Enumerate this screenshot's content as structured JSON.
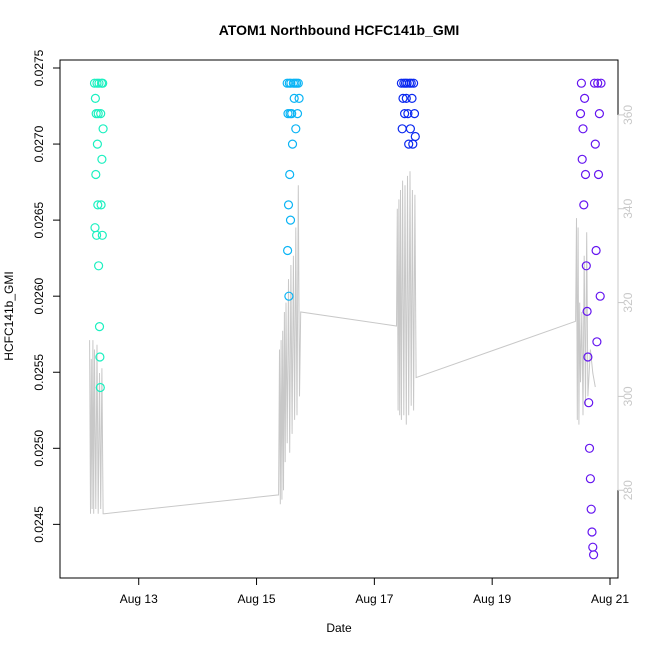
{
  "chart_data": {
    "type": "scatter",
    "title": "ATOM1 Northbound HCFC141b_GMI",
    "xlabel": "Date",
    "ylabel": "HCFC141b_GMI",
    "xlim": [
      "2016-08-11T20:00",
      "2016-08-21T00:00"
    ],
    "ylim": [
      0.0242,
      0.0275
    ],
    "y2lim": [
      263,
      370
    ],
    "x_ticks": [
      {
        "date": "2016-08-13",
        "label": "Aug 13"
      },
      {
        "date": "2016-08-15",
        "label": "Aug 15"
      },
      {
        "date": "2016-08-17",
        "label": "Aug 17"
      },
      {
        "date": "2016-08-19",
        "label": "Aug 19"
      },
      {
        "date": "2016-08-21",
        "label": "Aug 21"
      }
    ],
    "y_ticks": [
      0.0245,
      0.025,
      0.0255,
      0.026,
      0.0265,
      0.027,
      0.0275
    ],
    "y2_ticks": [
      280,
      300,
      320,
      340,
      360
    ],
    "grid": false,
    "marker_style": "open-circle",
    "segments": [
      {
        "color": "#1bf0c0",
        "points": [
          [
            "2016-08-12T06:00",
            0.0274
          ],
          [
            "2016-08-12T06:10",
            0.02645
          ],
          [
            "2016-08-12T06:20",
            0.0273
          ],
          [
            "2016-08-12T06:30",
            0.0268
          ],
          [
            "2016-08-12T06:40",
            0.0272
          ],
          [
            "2016-08-12T06:50",
            0.0264
          ],
          [
            "2016-08-12T07:00",
            0.0274
          ],
          [
            "2016-08-12T07:10",
            0.027
          ],
          [
            "2016-08-12T07:20",
            0.0266
          ],
          [
            "2016-08-12T07:30",
            0.0272
          ],
          [
            "2016-08-12T07:40",
            0.0262
          ],
          [
            "2016-08-12T07:50",
            0.0274
          ],
          [
            "2016-08-12T08:00",
            0.0258
          ],
          [
            "2016-08-12T08:10",
            0.0256
          ],
          [
            "2016-08-12T08:20",
            0.0254
          ],
          [
            "2016-08-12T08:30",
            0.0272
          ],
          [
            "2016-08-12T08:40",
            0.0266
          ],
          [
            "2016-08-12T08:50",
            0.0274
          ],
          [
            "2016-08-12T09:00",
            0.0269
          ],
          [
            "2016-08-12T09:10",
            0.0264
          ],
          [
            "2016-08-12T09:20",
            0.0274
          ],
          [
            "2016-08-12T09:30",
            0.0271
          ]
        ]
      },
      {
        "color": "#0ab4f5",
        "points": [
          [
            "2016-08-15T12:30",
            0.0274
          ],
          [
            "2016-08-15T12:40",
            0.0263
          ],
          [
            "2016-08-15T12:50",
            0.0272
          ],
          [
            "2016-08-15T13:00",
            0.0266
          ],
          [
            "2016-08-15T13:10",
            0.026
          ],
          [
            "2016-08-15T13:20",
            0.0274
          ],
          [
            "2016-08-15T13:30",
            0.0268
          ],
          [
            "2016-08-15T13:40",
            0.0272
          ],
          [
            "2016-08-15T13:50",
            0.0265
          ],
          [
            "2016-08-15T14:00",
            0.0274
          ],
          [
            "2016-08-15T14:20",
            0.0272
          ],
          [
            "2016-08-15T14:40",
            0.027
          ],
          [
            "2016-08-15T15:00",
            0.0274
          ],
          [
            "2016-08-15T15:20",
            0.0273
          ],
          [
            "2016-08-15T15:40",
            0.0274
          ],
          [
            "2016-08-15T16:00",
            0.0271
          ],
          [
            "2016-08-15T16:20",
            0.0274
          ],
          [
            "2016-08-15T16:40",
            0.0272
          ],
          [
            "2016-08-15T17:00",
            0.0274
          ],
          [
            "2016-08-15T17:20",
            0.0273
          ]
        ]
      },
      {
        "color": "#0a28f0",
        "points": [
          [
            "2016-08-17T11:00",
            0.0274
          ],
          [
            "2016-08-17T11:20",
            0.0271
          ],
          [
            "2016-08-17T11:40",
            0.0273
          ],
          [
            "2016-08-17T12:00",
            0.0274
          ],
          [
            "2016-08-17T12:20",
            0.0272
          ],
          [
            "2016-08-17T12:40",
            0.0274
          ],
          [
            "2016-08-17T13:00",
            0.0273
          ],
          [
            "2016-08-17T13:20",
            0.0274
          ],
          [
            "2016-08-17T13:40",
            0.0272
          ],
          [
            "2016-08-17T14:00",
            0.027
          ],
          [
            "2016-08-17T14:20",
            0.0274
          ],
          [
            "2016-08-17T14:40",
            0.0271
          ],
          [
            "2016-08-17T15:00",
            0.0274
          ],
          [
            "2016-08-17T15:20",
            0.0273
          ],
          [
            "2016-08-17T15:40",
            0.027
          ],
          [
            "2016-08-17T16:00",
            0.0274
          ],
          [
            "2016-08-17T16:20",
            0.0272
          ],
          [
            "2016-08-17T16:40",
            0.02705
          ]
        ]
      },
      {
        "color": "#6414f0",
        "points": [
          [
            "2016-08-20T12:00",
            0.0272
          ],
          [
            "2016-08-20T12:20",
            0.0274
          ],
          [
            "2016-08-20T12:40",
            0.0269
          ],
          [
            "2016-08-20T13:00",
            0.0271
          ],
          [
            "2016-08-20T13:20",
            0.0266
          ],
          [
            "2016-08-20T13:40",
            0.0273
          ],
          [
            "2016-08-20T14:00",
            0.0268
          ],
          [
            "2016-08-20T14:20",
            0.0262
          ],
          [
            "2016-08-20T14:40",
            0.0259
          ],
          [
            "2016-08-20T15:00",
            0.0256
          ],
          [
            "2016-08-20T15:20",
            0.0253
          ],
          [
            "2016-08-20T15:40",
            0.025
          ],
          [
            "2016-08-20T16:00",
            0.0248
          ],
          [
            "2016-08-20T16:20",
            0.0246
          ],
          [
            "2016-08-20T16:40",
            0.02445
          ],
          [
            "2016-08-20T17:00",
            0.02435
          ],
          [
            "2016-08-20T17:20",
            0.0243
          ],
          [
            "2016-08-20T17:40",
            0.0274
          ],
          [
            "2016-08-20T18:00",
            0.027
          ],
          [
            "2016-08-20T18:20",
            0.0263
          ],
          [
            "2016-08-20T18:40",
            0.0257
          ],
          [
            "2016-08-20T19:00",
            0.0274
          ],
          [
            "2016-08-20T19:20",
            0.0268
          ],
          [
            "2016-08-20T19:40",
            0.0272
          ],
          [
            "2016-08-20T20:00",
            0.026
          ],
          [
            "2016-08-20T20:20",
            0.0274
          ]
        ]
      }
    ],
    "line_series": {
      "color": "#c8c8c8",
      "axis": "right",
      "points": [
        [
          "2016-08-12T04:00",
          312
        ],
        [
          "2016-08-12T04:20",
          275
        ],
        [
          "2016-08-12T04:40",
          308
        ],
        [
          "2016-08-12T05:00",
          276
        ],
        [
          "2016-08-12T05:20",
          312
        ],
        [
          "2016-08-12T05:40",
          275
        ],
        [
          "2016-08-12T06:00",
          310
        ],
        [
          "2016-08-12T06:30",
          276
        ],
        [
          "2016-08-12T07:00",
          311
        ],
        [
          "2016-08-12T07:30",
          275
        ],
        [
          "2016-08-12T08:00",
          305
        ],
        [
          "2016-08-12T08:30",
          276
        ],
        [
          "2016-08-12T09:00",
          306
        ],
        [
          "2016-08-12T09:30",
          275
        ],
        [
          "2016-08-12T10:00",
          275
        ],
        [
          "2016-08-15T09:00",
          279
        ],
        [
          "2016-08-15T09:20",
          310
        ],
        [
          "2016-08-15T09:40",
          277
        ],
        [
          "2016-08-15T10:00",
          312
        ],
        [
          "2016-08-15T10:20",
          278
        ],
        [
          "2016-08-15T10:40",
          314
        ],
        [
          "2016-08-15T11:00",
          280
        ],
        [
          "2016-08-15T11:20",
          318
        ],
        [
          "2016-08-15T11:40",
          286
        ],
        [
          "2016-08-15T12:00",
          320
        ],
        [
          "2016-08-15T12:30",
          290
        ],
        [
          "2016-08-15T13:00",
          325
        ],
        [
          "2016-08-15T13:30",
          288
        ],
        [
          "2016-08-15T14:00",
          328
        ],
        [
          "2016-08-15T14:30",
          292
        ],
        [
          "2016-08-15T15:00",
          330
        ],
        [
          "2016-08-15T15:30",
          295
        ],
        [
          "2016-08-15T16:00",
          336
        ],
        [
          "2016-08-15T16:30",
          296
        ],
        [
          "2016-08-15T17:00",
          345
        ],
        [
          "2016-08-15T17:30",
          300
        ],
        [
          "2016-08-15T18:00",
          318
        ],
        [
          "2016-08-17T09:00",
          315
        ],
        [
          "2016-08-17T09:20",
          340
        ],
        [
          "2016-08-17T09:40",
          297
        ],
        [
          "2016-08-17T10:00",
          342
        ],
        [
          "2016-08-17T10:20",
          296
        ],
        [
          "2016-08-17T10:40",
          344
        ],
        [
          "2016-08-17T11:00",
          295
        ],
        [
          "2016-08-17T11:30",
          346
        ],
        [
          "2016-08-17T12:00",
          296
        ],
        [
          "2016-08-17T12:30",
          345
        ],
        [
          "2016-08-17T13:00",
          294
        ],
        [
          "2016-08-17T13:30",
          347
        ],
        [
          "2016-08-17T14:00",
          296
        ],
        [
          "2016-08-17T14:30",
          348
        ],
        [
          "2016-08-17T15:00",
          298
        ],
        [
          "2016-08-17T15:30",
          344
        ],
        [
          "2016-08-17T16:00",
          297
        ],
        [
          "2016-08-17T16:30",
          343
        ],
        [
          "2016-08-17T17:00",
          304
        ],
        [
          "2016-08-20T10:00",
          316
        ],
        [
          "2016-08-20T10:20",
          338
        ],
        [
          "2016-08-20T10:40",
          295
        ],
        [
          "2016-08-20T11:00",
          336
        ],
        [
          "2016-08-20T11:20",
          294
        ],
        [
          "2016-08-20T11:40",
          320
        ],
        [
          "2016-08-20T12:00",
          303
        ],
        [
          "2016-08-20T12:30",
          318
        ],
        [
          "2016-08-20T13:00",
          296
        ],
        [
          "2016-08-20T13:30",
          330
        ],
        [
          "2016-08-20T14:00",
          298
        ],
        [
          "2016-08-20T14:30",
          335
        ],
        [
          "2016-08-20T15:00",
          300
        ],
        [
          "2016-08-20T16:00",
          310
        ],
        [
          "2016-08-20T17:00",
          305
        ],
        [
          "2016-08-20T18:00",
          302
        ]
      ]
    }
  }
}
